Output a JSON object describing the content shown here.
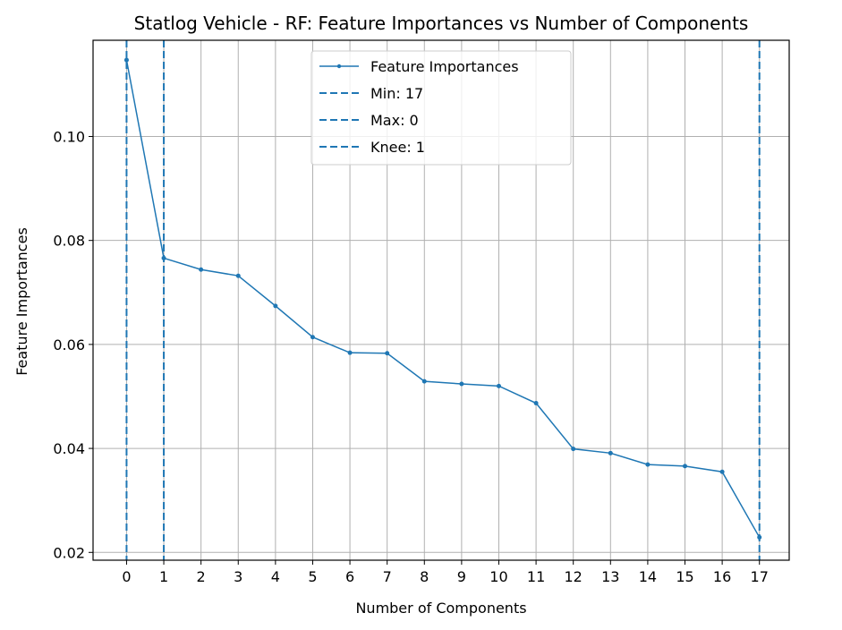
{
  "chart_data": {
    "type": "line",
    "title": "Statlog Vehicle - RF: Feature Importances vs Number of Components",
    "xlabel": "Number of Components",
    "ylabel": "Feature Importances",
    "xlim": [
      -0.9,
      17.8
    ],
    "ylim": [
      0.0185,
      0.1185
    ],
    "grid": true,
    "legend_position": "upper center",
    "x": [
      0,
      1,
      2,
      3,
      4,
      5,
      6,
      7,
      8,
      9,
      10,
      11,
      12,
      13,
      14,
      15,
      16,
      17
    ],
    "x_ticks": [
      0,
      1,
      2,
      3,
      4,
      5,
      6,
      7,
      8,
      9,
      10,
      11,
      12,
      13,
      14,
      15,
      16,
      17
    ],
    "y_ticks": [
      0.02,
      0.04,
      0.06,
      0.08,
      0.1
    ],
    "y_tick_labels": [
      "0.02",
      "0.04",
      "0.06",
      "0.08",
      "0.10"
    ],
    "series": [
      {
        "name": "Feature Importances",
        "color": "#1f77b4",
        "values": [
          0.1147,
          0.0766,
          0.0744,
          0.0732,
          0.0674,
          0.0614,
          0.0584,
          0.0583,
          0.0529,
          0.0524,
          0.052,
          0.0487,
          0.0399,
          0.0391,
          0.0369,
          0.0366,
          0.0355,
          0.0229
        ]
      }
    ],
    "vlines": [
      {
        "name": "Min: 17",
        "x": 17,
        "color": "#1f77b4"
      },
      {
        "name": "Max: 0",
        "x": 0,
        "color": "#1f77b4"
      },
      {
        "name": "Knee: 1",
        "x": 1,
        "color": "#1f77b4"
      }
    ],
    "grid_color": "#b0b0b0"
  }
}
